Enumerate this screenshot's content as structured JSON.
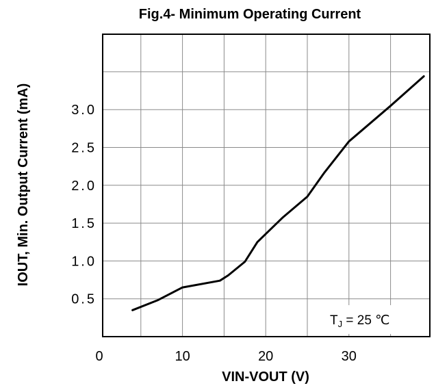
{
  "chart_data": {
    "type": "line",
    "title": "Fig.4- Minimum Operating Current",
    "xlabel": "VIN-VOUT (V)",
    "ylabel": "IOUT, Min. Output Current (mA)",
    "xlim": [
      0,
      39
    ],
    "ylim": [
      0,
      3.55
    ],
    "x_ticks": [
      {
        "value": 0,
        "label": "0"
      },
      {
        "value": 10,
        "label": "10"
      },
      {
        "value": 20,
        "label": "20"
      },
      {
        "value": 30,
        "label": "30"
      }
    ],
    "y_ticks": [
      {
        "value": 0.5,
        "label": "0.5"
      },
      {
        "value": 1.0,
        "label": "1.0"
      },
      {
        "value": 1.5,
        "label": "1.5"
      },
      {
        "value": 2.0,
        "label": "2.0"
      },
      {
        "value": 2.5,
        "label": "2.5"
      },
      {
        "value": 3.0,
        "label": "3.0"
      }
    ],
    "x_grid": [
      5,
      10,
      15,
      20,
      25,
      30,
      35
    ],
    "y_grid": [
      0.5,
      1.0,
      1.5,
      2.0,
      2.5,
      3.0,
      3.5
    ],
    "grid": true,
    "series": [
      {
        "color": "#000000",
        "x": [
          4,
          7,
          10,
          14.5,
          15.5,
          17.5,
          19,
          22,
          25,
          27,
          30,
          35,
          39
        ],
        "y": [
          0.35,
          0.48,
          0.65,
          0.74,
          0.81,
          0.99,
          1.25,
          1.57,
          1.85,
          2.16,
          2.58,
          3.05,
          3.44
        ]
      }
    ],
    "annotation": {
      "prefix": "T",
      "subscript": "J",
      "text": " = 25 ℃",
      "placement": "bottom-right"
    }
  }
}
